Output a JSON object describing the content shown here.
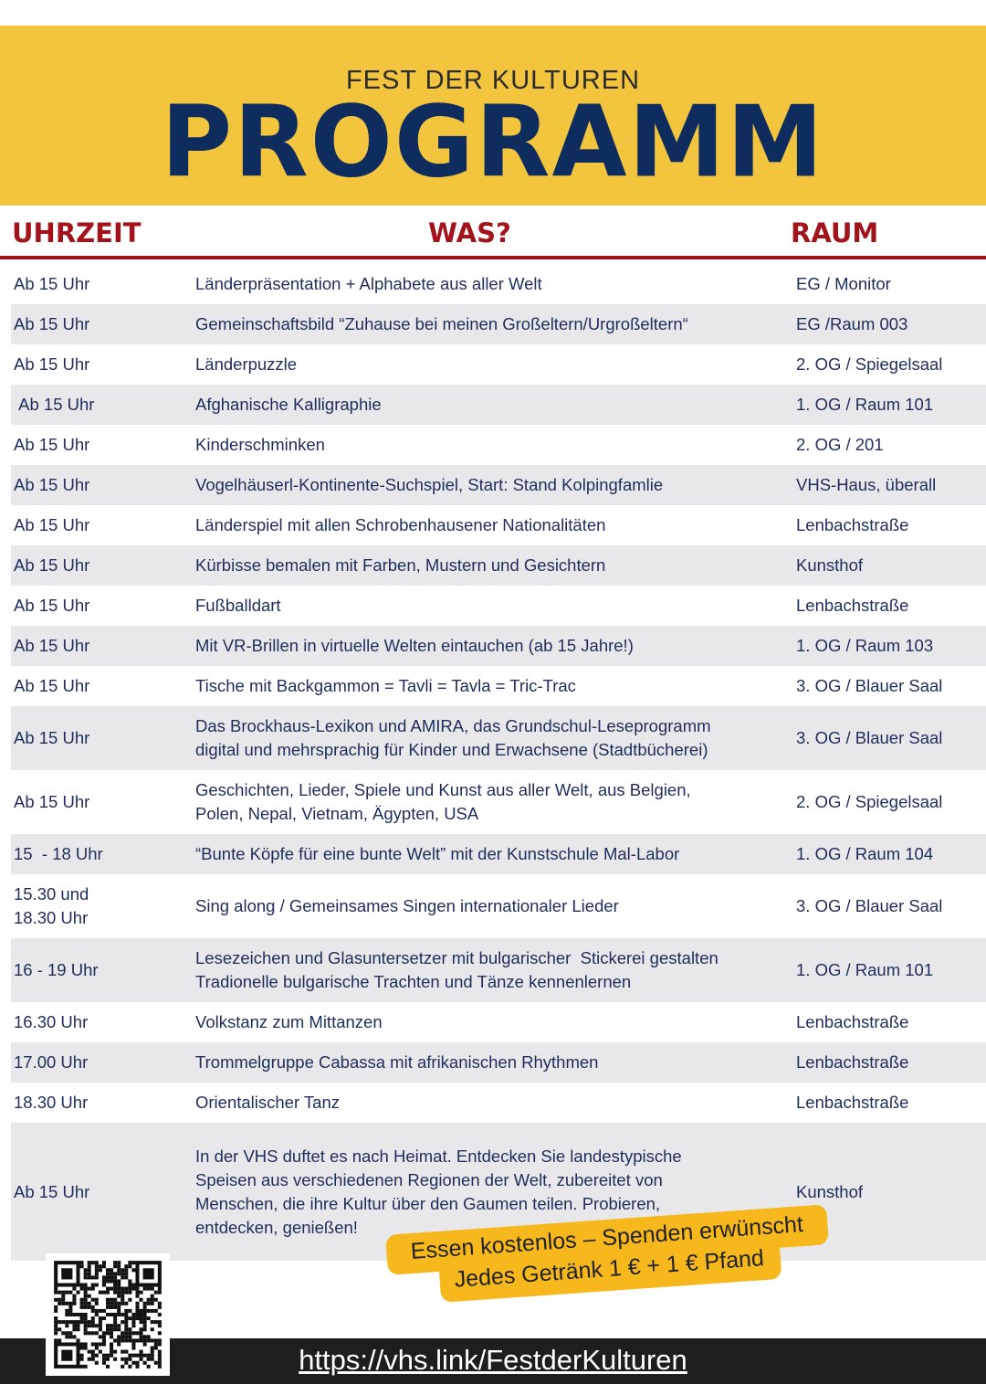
{
  "header": {
    "subtitle": "FEST DER KULTUREN",
    "title": "PROGRAMM"
  },
  "columns": {
    "time": "UHRZEIT",
    "what": "WAS?",
    "room": "RAUM"
  },
  "rows": [
    {
      "time": "Ab 15 Uhr",
      "what": "Länderpräsentation + Alphabete aus aller Welt",
      "room": "EG / Monitor"
    },
    {
      "time": "Ab 15 Uhr",
      "what": "Gemeinschaftsbild “Zuhause bei meinen Großeltern/Urgroßeltern“",
      "room": "EG /Raum 003"
    },
    {
      "time": "Ab 15 Uhr",
      "what": "Länderpuzzle",
      "room": "2. OG / Spiegelsaal"
    },
    {
      "time": " Ab 15 Uhr",
      "what": "Afghanische Kalligraphie",
      "room": "1. OG / Raum 101"
    },
    {
      "time": "Ab 15 Uhr",
      "what": "Kinderschminken",
      "room": "2. OG / 201"
    },
    {
      "time": "Ab 15 Uhr",
      "what": "Vogelhäuserl-Kontinente-Suchspiel, Start: Stand Kolpingfamlie",
      "room": "VHS-Haus, überall"
    },
    {
      "time": "Ab 15 Uhr",
      "what": "Länderspiel mit allen Schrobenhausener Nationalitäten",
      "room": "Lenbachstraße"
    },
    {
      "time": "Ab 15 Uhr",
      "what": "Kürbisse bemalen mit Farben, Mustern und Gesichtern",
      "room": "Kunsthof"
    },
    {
      "time": "Ab 15 Uhr",
      "what": "Fußballdart",
      "room": "Lenbachstraße"
    },
    {
      "time": "Ab 15 Uhr",
      "what": "Mit VR-Brillen in virtuelle Welten eintauchen (ab 15 Jahre!)",
      "room": "1. OG / Raum 103"
    },
    {
      "time": "Ab 15 Uhr",
      "what": "Tische mit Backgammon = Tavli = Tavla = Tric-Trac",
      "room": "3. OG / Blauer Saal"
    },
    {
      "time": "Ab 15 Uhr",
      "what": "Das Brockhaus-Lexikon und AMIRA, das Grundschul-Leseprogramm\ndigital und mehrsprachig für Kinder und Erwachsene (Stadtbücherei)",
      "room": "3. OG / Blauer Saal"
    },
    {
      "time": "Ab 15 Uhr",
      "what": "Geschichten, Lieder, Spiele und Kunst aus aller Welt, aus Belgien,\nPolen, Nepal, Vietnam, Ägypten, USA",
      "room": "2. OG / Spiegelsaal"
    },
    {
      "time": "15  - 18 Uhr",
      "what": "“Bunte Köpfe für eine bunte Welt” mit der Kunstschule Mal-Labor",
      "room": "1. OG / Raum 104"
    },
    {
      "time": "15.30 und\n18.30 Uhr",
      "what": "Sing along / Gemeinsames Singen internationaler Lieder",
      "room": "3. OG / Blauer Saal"
    },
    {
      "time": "16 - 19 Uhr",
      "what": "Lesezeichen und Glasuntersetzer mit bulgarischer  Stickerei gestalten\nTradionelle bulgarische Trachten und Tänze kennenlernen",
      "room": "1. OG / Raum 101"
    },
    {
      "time": "16.30 Uhr",
      "what": "Volkstanz zum Mittanzen",
      "room": "Lenbachstraße"
    },
    {
      "time": "17.00 Uhr",
      "what": "Trommelgruppe Cabassa mit afrikanischen Rhythmen",
      "room": "Lenbachstraße"
    },
    {
      "time": "18.30 Uhr",
      "what": "Orientalischer Tanz",
      "room": "Lenbachstraße"
    },
    {
      "time": "Ab 15 Uhr",
      "what": "In der VHS duftet es nach Heimat. Entdecken Sie landestypische\nSpeisen aus verschiedenen Regionen der Welt, zubereitet von\nMenschen, die ihre Kultur über den Gaumen teilen. Probieren,\nentdecken, genießen!",
      "room": "Kunsthof"
    }
  ],
  "sticker": {
    "line1": "Essen kostenlos – Spenden erwünscht",
    "line2": "Jedes Getränk 1 € + 1 € Pfand"
  },
  "footer": {
    "url": "https://vhs.link/FestderKulturen",
    "qr_icon": "qr-code-icon"
  },
  "colors": {
    "banner": "#f3c53e",
    "title": "#0e2d5e",
    "header_red": "#a3131b",
    "text": "#1d2d5c",
    "stripe": "#e8e8ea",
    "sticker": "#f6b81c",
    "footer": "#1e1e1e"
  }
}
